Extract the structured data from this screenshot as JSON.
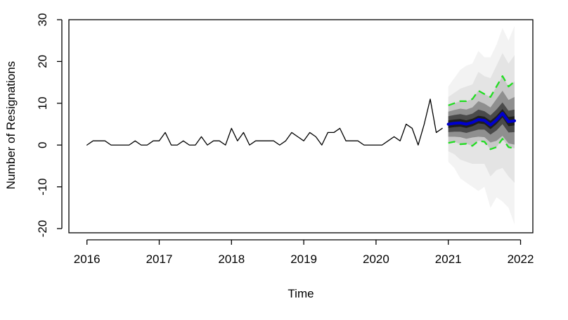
{
  "chart_data": {
    "type": "line",
    "xlabel": "Time",
    "ylabel": "Number of Resignations",
    "xlim": [
      2015.75,
      2022.17
    ],
    "ylim": [
      -21,
      30
    ],
    "x_ticks": [
      "2016",
      "2017",
      "2018",
      "2019",
      "2020",
      "2021",
      "2022"
    ],
    "y_ticks": [
      "-20",
      "-10",
      "0",
      "10",
      "20",
      "30"
    ],
    "grid": false,
    "legend": "none",
    "series": [
      {
        "kind": "observed",
        "color": "#000000",
        "start": 2016.0,
        "step": 0.083333,
        "values": [
          0,
          1,
          1,
          1,
          0,
          0,
          0,
          0,
          1,
          0,
          0,
          1,
          1,
          3,
          0,
          0,
          1,
          0,
          0,
          2,
          0,
          1,
          1,
          0,
          4,
          1,
          3,
          0,
          1,
          1,
          1,
          1,
          0,
          1,
          3,
          2,
          1,
          3,
          2,
          0,
          3,
          3,
          4,
          1,
          1,
          1,
          0,
          0,
          0,
          0,
          1,
          2,
          1,
          5,
          4,
          0,
          5,
          11,
          3,
          4
        ]
      },
      {
        "kind": "forecast-mean",
        "color": "#0000cc",
        "start": 2021.0,
        "step": 0.083333,
        "values": [
          5.0,
          5.2,
          5.3,
          5.0,
          5.4,
          6.1,
          5.9,
          4.8,
          6.0,
          7.6,
          5.6,
          5.8
        ]
      },
      {
        "kind": "prediction-interval-upper",
        "color": "#22dd22",
        "start": 2021.0,
        "step": 0.083333,
        "values": [
          9.5,
          10.0,
          10.5,
          10.5,
          11.0,
          13.0,
          12.2,
          11.5,
          14.0,
          16.5,
          14.0,
          15.2
        ]
      },
      {
        "kind": "prediction-interval-lower",
        "color": "#22dd22",
        "start": 2021.0,
        "step": 0.083333,
        "values": [
          0.5,
          0.8,
          0.2,
          0.3,
          -0.2,
          1.0,
          0.8,
          -1.0,
          -0.5,
          1.5,
          -0.5,
          -0.8
        ]
      }
    ],
    "fan": {
      "start": 2021.0,
      "step": 0.083333,
      "levels": [
        {
          "shade": "#f3f3f3",
          "upper": [
            14.0,
            16.0,
            18.0,
            19.0,
            19.5,
            22.5,
            21.0,
            21.0,
            24.0,
            28.0,
            25.0,
            28.5
          ],
          "lower": [
            -4.0,
            -5.5,
            -8.0,
            -9.0,
            -10.0,
            -11.0,
            -10.0,
            -15.0,
            -12.5,
            -13.5,
            -15.0,
            -19.0
          ]
        },
        {
          "shade": "#e4e4e4",
          "upper": [
            11.5,
            12.5,
            13.5,
            14.0,
            14.5,
            17.5,
            16.5,
            16.0,
            19.0,
            22.0,
            19.5,
            21.5
          ],
          "lower": [
            -1.5,
            -2.2,
            -3.5,
            -4.0,
            -4.5,
            -4.5,
            -4.5,
            -7.5,
            -6.0,
            -5.5,
            -7.5,
            -9.0
          ]
        },
        {
          "shade": "#c8c8c8",
          "upper": [
            9.5,
            10.0,
            10.5,
            10.5,
            11.0,
            13.0,
            12.2,
            11.5,
            14.0,
            16.5,
            14.0,
            15.2
          ],
          "lower": [
            0.5,
            0.8,
            0.2,
            0.3,
            -0.2,
            1.0,
            0.8,
            -1.0,
            -0.5,
            1.5,
            -0.5,
            -0.8
          ]
        },
        {
          "shade": "#8f8f8f",
          "upper": [
            8.0,
            8.4,
            8.7,
            8.5,
            9.0,
            10.5,
            9.9,
            9.0,
            11.0,
            13.0,
            10.8,
            11.5
          ],
          "lower": [
            2.0,
            2.0,
            1.9,
            1.5,
            1.8,
            2.0,
            1.9,
            0.6,
            1.0,
            2.2,
            0.4,
            0.1
          ]
        },
        {
          "shade": "#4a4a4a",
          "upper": [
            6.9,
            7.2,
            7.4,
            7.1,
            7.5,
            8.5,
            8.1,
            7.1,
            8.5,
            10.2,
            8.2,
            8.5
          ],
          "lower": [
            3.1,
            3.2,
            3.2,
            2.9,
            3.3,
            3.7,
            3.7,
            2.5,
            3.5,
            5.0,
            3.0,
            3.1
          ]
        },
        {
          "shade": "#1e1e1e",
          "upper": [
            5.9,
            6.1,
            6.2,
            5.9,
            6.3,
            7.0,
            6.8,
            5.8,
            7.0,
            8.6,
            6.7,
            6.9
          ],
          "lower": [
            4.1,
            4.3,
            4.4,
            4.1,
            4.5,
            5.2,
            5.0,
            3.8,
            5.0,
            6.6,
            4.5,
            4.7
          ]
        }
      ]
    }
  }
}
